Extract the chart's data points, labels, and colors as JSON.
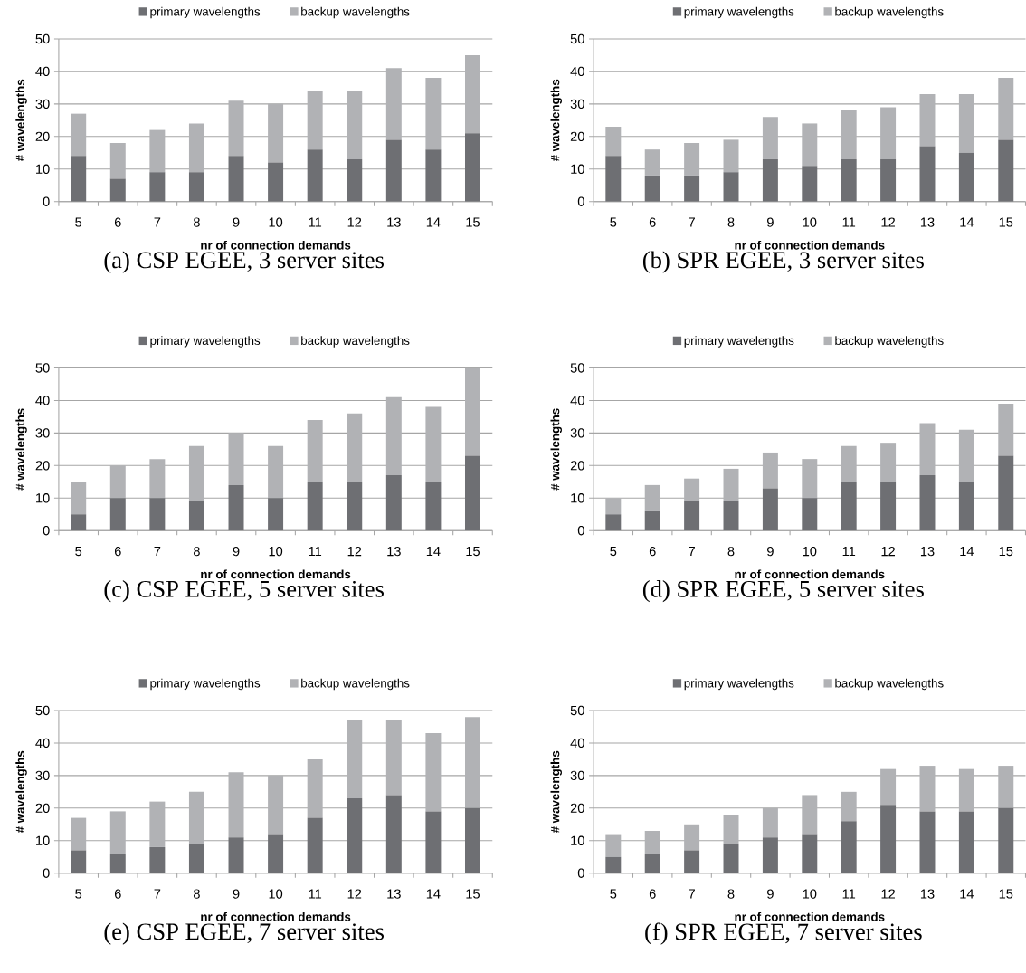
{
  "chart_data": [
    {
      "type": "bar",
      "title": "(a) CSP EGEE, 3 server sites",
      "xlabel": "nr of connection demands",
      "ylabel": "# wavelengths",
      "categories": [
        "5",
        "6",
        "7",
        "8",
        "9",
        "10",
        "11",
        "12",
        "13",
        "14",
        "15"
      ],
      "stacked": true,
      "ylim": [
        0,
        50
      ],
      "yticks": [
        0,
        10,
        20,
        30,
        40,
        50
      ],
      "grid": "y",
      "legend": "top",
      "series": [
        {
          "name": "primary wavelengths",
          "color": "#6e6f73",
          "values": [
            14,
            7,
            9,
            9,
            14,
            12,
            16,
            13,
            19,
            16,
            21
          ]
        },
        {
          "name": "backup wavelengths",
          "color": "#b1b2b5",
          "values": [
            13,
            11,
            13,
            15,
            17,
            18,
            18,
            21,
            22,
            22,
            24
          ]
        }
      ]
    },
    {
      "type": "bar",
      "title": "(b) SPR EGEE, 3 server sites",
      "xlabel": "nr of connection demands",
      "ylabel": "# wavelengths",
      "categories": [
        "5",
        "6",
        "7",
        "8",
        "9",
        "10",
        "11",
        "12",
        "13",
        "14",
        "15"
      ],
      "stacked": true,
      "ylim": [
        0,
        50
      ],
      "yticks": [
        0,
        10,
        20,
        30,
        40,
        50
      ],
      "grid": "y",
      "legend": "top",
      "series": [
        {
          "name": "primary wavelengths",
          "color": "#6e6f73",
          "values": [
            14,
            8,
            8,
            9,
            13,
            11,
            13,
            13,
            17,
            15,
            19
          ]
        },
        {
          "name": "backup wavelengths",
          "color": "#b1b2b5",
          "values": [
            9,
            8,
            10,
            10,
            13,
            13,
            15,
            16,
            16,
            18,
            19
          ]
        }
      ]
    },
    {
      "type": "bar",
      "title": "(c) CSP EGEE, 5 server sites",
      "xlabel": "nr of connection demands",
      "ylabel": "# wavelengths",
      "categories": [
        "5",
        "6",
        "7",
        "8",
        "9",
        "10",
        "11",
        "12",
        "13",
        "14",
        "15"
      ],
      "stacked": true,
      "ylim": [
        0,
        50
      ],
      "yticks": [
        0,
        10,
        20,
        30,
        40,
        50
      ],
      "grid": "y",
      "legend": "top",
      "series": [
        {
          "name": "primary wavelengths",
          "color": "#6e6f73",
          "values": [
            5,
            10,
            10,
            9,
            14,
            10,
            15,
            15,
            17,
            15,
            23
          ]
        },
        {
          "name": "backup wavelengths",
          "color": "#b1b2b5",
          "values": [
            10,
            10,
            12,
            17,
            16,
            16,
            19,
            21,
            24,
            23,
            27
          ]
        }
      ]
    },
    {
      "type": "bar",
      "title": "(d) SPR EGEE, 5 server sites",
      "xlabel": "nr of connection demands",
      "ylabel": "# wavelengths",
      "categories": [
        "5",
        "6",
        "7",
        "8",
        "9",
        "10",
        "11",
        "12",
        "13",
        "14",
        "15"
      ],
      "stacked": true,
      "ylim": [
        0,
        50
      ],
      "yticks": [
        0,
        10,
        20,
        30,
        40,
        50
      ],
      "grid": "y",
      "legend": "top",
      "series": [
        {
          "name": "primary wavelengths",
          "color": "#6e6f73",
          "values": [
            5,
            6,
            9,
            9,
            13,
            10,
            15,
            15,
            17,
            15,
            23
          ]
        },
        {
          "name": "backup wavelengths",
          "color": "#b1b2b5",
          "values": [
            5,
            8,
            7,
            10,
            11,
            12,
            11,
            12,
            16,
            16,
            16
          ]
        }
      ]
    },
    {
      "type": "bar",
      "title": "(e) CSP EGEE, 7 server sites",
      "xlabel": "nr of connection demands",
      "ylabel": "# wavelengths",
      "categories": [
        "5",
        "6",
        "7",
        "8",
        "9",
        "10",
        "11",
        "12",
        "13",
        "14",
        "15"
      ],
      "stacked": true,
      "ylim": [
        0,
        50
      ],
      "yticks": [
        0,
        10,
        20,
        30,
        40,
        50
      ],
      "grid": "y",
      "legend": "top",
      "series": [
        {
          "name": "primary wavelengths",
          "color": "#6e6f73",
          "values": [
            7,
            6,
            8,
            9,
            11,
            12,
            17,
            23,
            24,
            19,
            20
          ]
        },
        {
          "name": "backup wavelengths",
          "color": "#b1b2b5",
          "values": [
            10,
            13,
            14,
            16,
            20,
            18,
            18,
            24,
            23,
            24,
            28
          ]
        }
      ]
    },
    {
      "type": "bar",
      "title": "(f) SPR EGEE, 7 server sites",
      "xlabel": "nr of connection demands",
      "ylabel": "# wavelengths",
      "categories": [
        "5",
        "6",
        "7",
        "8",
        "9",
        "10",
        "11",
        "12",
        "13",
        "14",
        "15"
      ],
      "stacked": true,
      "ylim": [
        0,
        50
      ],
      "yticks": [
        0,
        10,
        20,
        30,
        40,
        50
      ],
      "grid": "y",
      "legend": "top",
      "series": [
        {
          "name": "primary wavelengths",
          "color": "#6e6f73",
          "values": [
            5,
            6,
            7,
            9,
            11,
            12,
            16,
            21,
            19,
            19,
            20
          ]
        },
        {
          "name": "backup wavelengths",
          "color": "#b1b2b5",
          "values": [
            7,
            7,
            8,
            9,
            9,
            12,
            9,
            11,
            14,
            13,
            13
          ]
        }
      ]
    }
  ]
}
